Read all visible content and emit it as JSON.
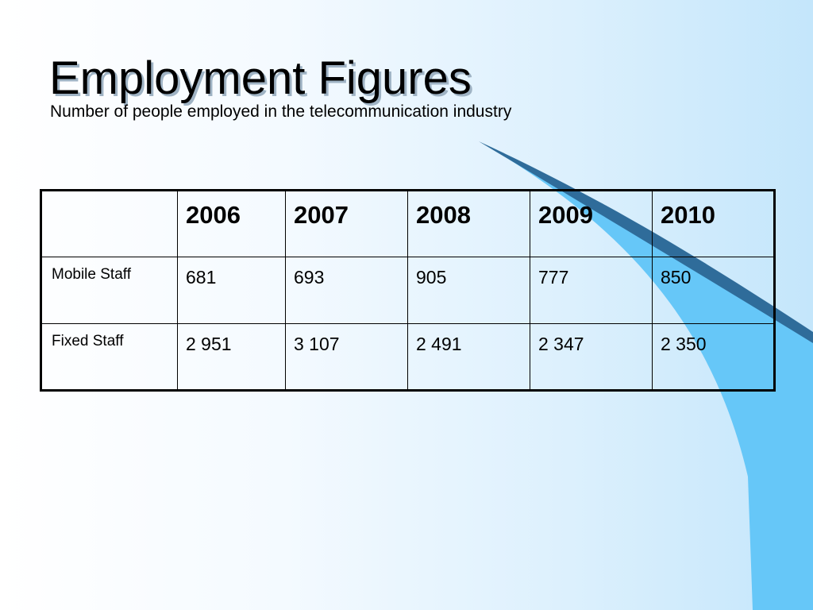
{
  "slide": {
    "title": "Employment Figures",
    "subtitle": "Number of people employed in the telecommunication industry"
  },
  "theme": {
    "background_left": "#ffffff",
    "background_right": "#c4e6fb",
    "swoosh_dark": "#2f6c9a",
    "swoosh_light": "#66c7f8"
  },
  "chart_data": {
    "type": "table",
    "title": "Employment Figures",
    "subtitle": "Number of people employed in the telecommunication industry",
    "columns": [
      "",
      "2006",
      "2007",
      "2008",
      "2009",
      "2010"
    ],
    "rows": [
      {
        "label": "Mobile Staff",
        "values": [
          "681",
          "693",
          "905",
          "777",
          "850"
        ]
      },
      {
        "label": "Fixed Staff",
        "values": [
          "2 951",
          "3 107",
          "2 491",
          "2 347",
          "2 350"
        ]
      }
    ]
  }
}
